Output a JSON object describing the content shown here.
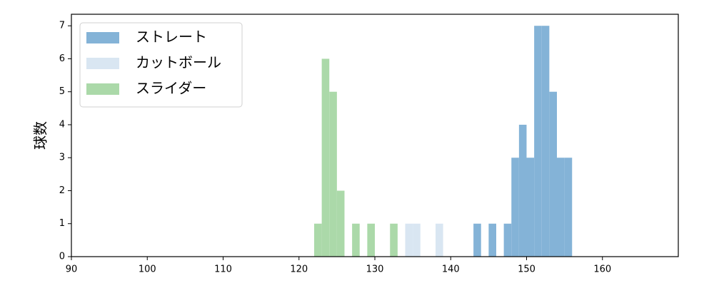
{
  "chart_data": {
    "type": "histogram",
    "ylabel": "球数",
    "bins": [
      122,
      123,
      124,
      125,
      126,
      127,
      128,
      129,
      130,
      131,
      132,
      133,
      134,
      135,
      136,
      137,
      138,
      139,
      140,
      141,
      142,
      143,
      144,
      145,
      146,
      147,
      148,
      149,
      150,
      151,
      152,
      153,
      154,
      155,
      156
    ],
    "series": [
      {
        "name": "ストレート",
        "color": "#84b3d7",
        "values": [
          0,
          0,
          0,
          0,
          0,
          0,
          0,
          0,
          0,
          0,
          0,
          0,
          0,
          0,
          0,
          0,
          0,
          0,
          0,
          0,
          0,
          1,
          0,
          1,
          0,
          1,
          3,
          4,
          3,
          7,
          7,
          5,
          3,
          3
        ]
      },
      {
        "name": "カットボール",
        "color": "#d9e6f2",
        "values": [
          0,
          0,
          0,
          0,
          0,
          0,
          0,
          0,
          0,
          0,
          0,
          0,
          1,
          1,
          0,
          0,
          1,
          0,
          0,
          0,
          0,
          0,
          0,
          0,
          0,
          0,
          0,
          0,
          0,
          0,
          0,
          0,
          0,
          0
        ]
      },
      {
        "name": "スライダー",
        "color": "#abd9a9",
        "values": [
          1,
          6,
          5,
          2,
          0,
          1,
          0,
          1,
          0,
          0,
          1,
          0,
          0,
          0,
          0,
          0,
          0,
          0,
          0,
          0,
          0,
          0,
          0,
          0,
          0,
          0,
          0,
          0,
          0,
          0,
          0,
          0,
          0,
          0
        ]
      }
    ],
    "xlim": [
      90,
      170
    ],
    "ylim": [
      0,
      7.35
    ],
    "xticks": [
      90,
      100,
      110,
      120,
      130,
      140,
      150,
      160
    ],
    "yticks": [
      0,
      1,
      2,
      3,
      4,
      5,
      6,
      7
    ],
    "legend": "upper left"
  }
}
